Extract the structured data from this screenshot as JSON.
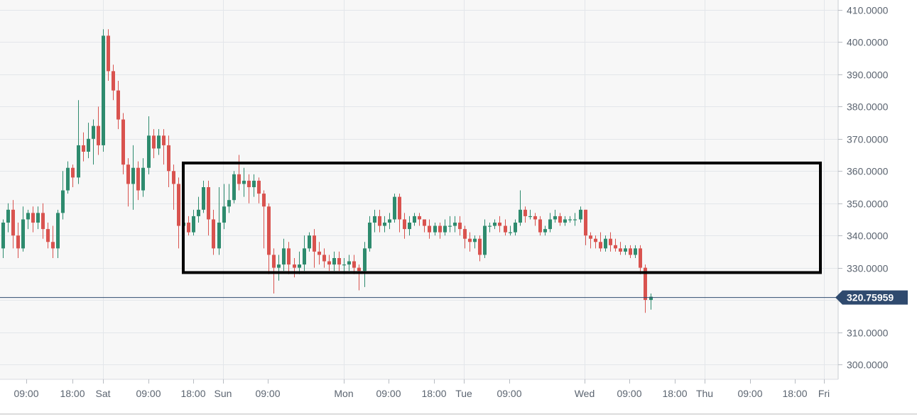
{
  "chart_data": {
    "type": "candlestick",
    "colors": {
      "up": "#2e8b6e",
      "down": "#d9534f",
      "grid": "#e3e6ea",
      "plot_background": "#f7f7f7",
      "price_line": "#2f4a6e",
      "price_tag": "#2f4a6e",
      "highlight_box": "#000000"
    },
    "y_axis": {
      "range": [
        296,
        412
      ],
      "ticks": [
        {
          "value": 410,
          "label": "410.0000"
        },
        {
          "value": 400,
          "label": "400.0000"
        },
        {
          "value": 390,
          "label": "390.0000"
        },
        {
          "value": 380,
          "label": "380.0000"
        },
        {
          "value": 370,
          "label": "370.0000"
        },
        {
          "value": 360,
          "label": "360.0000"
        },
        {
          "value": 350,
          "label": "350.0000"
        },
        {
          "value": 340,
          "label": "340.0000"
        },
        {
          "value": 330,
          "label": "330.0000"
        },
        {
          "value": 320,
          "label": ""
        },
        {
          "value": 310,
          "label": "310.0000"
        },
        {
          "value": 300,
          "label": "300.0000"
        }
      ],
      "position": "right"
    },
    "x_axis": {
      "tick_labels": [
        {
          "label": "09:00",
          "grid": false
        },
        {
          "label": "18:00",
          "grid": false
        },
        {
          "label": "Sat",
          "grid": true
        },
        {
          "label": "09:00",
          "grid": false
        },
        {
          "label": "18:00",
          "grid": false
        },
        {
          "label": "Sun",
          "grid": true
        },
        {
          "label": "09:00",
          "grid": false
        },
        {
          "label": "Mon",
          "grid": true
        },
        {
          "label": "09:00",
          "grid": false
        },
        {
          "label": "18:00",
          "grid": false
        },
        {
          "label": "Tue",
          "grid": true
        },
        {
          "label": "09:00",
          "grid": false
        },
        {
          "label": "Wed",
          "grid": true
        },
        {
          "label": "09:00",
          "grid": false
        },
        {
          "label": "18:00",
          "grid": false
        },
        {
          "label": "Thu",
          "grid": true
        },
        {
          "label": "09:00",
          "grid": false
        },
        {
          "label": "18:00",
          "grid": false
        },
        {
          "label": "Fri",
          "grid": true
        }
      ]
    },
    "current_price": {
      "value": 320.75959,
      "label": "320.75959"
    },
    "highlight_range": {
      "low": 328.5,
      "high": 362.5
    },
    "candles": [
      [
        336,
        344,
        333,
        345
      ],
      [
        344,
        348,
        341,
        350
      ],
      [
        348,
        340,
        336,
        351
      ],
      [
        340,
        336,
        333,
        344
      ],
      [
        336,
        345,
        335,
        349
      ],
      [
        345,
        347,
        342,
        348
      ],
      [
        347,
        344,
        341,
        349
      ],
      [
        344,
        347,
        342,
        349
      ],
      [
        347,
        342,
        339,
        350
      ],
      [
        342,
        338,
        336,
        344
      ],
      [
        338,
        336,
        333,
        343
      ],
      [
        336,
        347,
        333,
        348
      ],
      [
        347,
        354,
        345,
        360
      ],
      [
        354,
        361,
        353,
        363
      ],
      [
        361,
        358,
        355,
        362
      ],
      [
        358,
        368,
        356,
        382
      ],
      [
        368,
        366,
        363,
        372
      ],
      [
        366,
        370,
        364,
        375
      ],
      [
        370,
        374,
        362,
        376
      ],
      [
        374,
        368,
        365,
        380
      ],
      [
        368,
        402,
        366,
        404
      ],
      [
        402,
        391,
        388,
        404
      ],
      [
        391,
        385,
        382,
        393
      ],
      [
        385,
        376,
        373,
        388
      ],
      [
        376,
        362,
        359,
        378
      ],
      [
        362,
        356,
        349,
        364
      ],
      [
        356,
        361,
        348,
        368
      ],
      [
        361,
        354,
        351,
        363
      ],
      [
        354,
        361,
        352,
        364
      ],
      [
        361,
        371,
        359,
        377
      ],
      [
        371,
        367,
        364,
        373
      ],
      [
        367,
        371,
        365,
        373
      ],
      [
        371,
        368,
        362,
        373
      ],
      [
        368,
        360,
        355,
        371
      ],
      [
        360,
        356,
        348,
        362
      ],
      [
        356,
        343,
        336,
        358
      ],
      [
        343,
        344,
        340,
        350
      ],
      [
        344,
        341,
        340,
        346
      ],
      [
        341,
        346,
        340,
        348
      ],
      [
        346,
        348,
        344,
        352
      ],
      [
        348,
        355,
        347,
        357
      ],
      [
        355,
        345,
        340,
        357
      ],
      [
        345,
        336,
        334,
        348
      ],
      [
        336,
        344,
        334,
        355
      ],
      [
        344,
        349,
        342,
        356
      ],
      [
        349,
        351,
        347,
        356
      ],
      [
        351,
        359,
        350,
        360
      ],
      [
        359,
        356,
        354,
        365
      ],
      [
        356,
        357,
        352,
        361
      ],
      [
        357,
        355,
        350,
        359
      ],
      [
        355,
        357,
        352,
        359
      ],
      [
        357,
        353,
        350,
        358
      ],
      [
        353,
        349,
        336,
        354
      ],
      [
        349,
        334,
        328,
        350
      ],
      [
        334,
        330,
        322,
        336
      ],
      [
        330,
        331,
        326,
        334
      ],
      [
        331,
        336,
        329,
        339
      ],
      [
        336,
        331,
        328,
        338
      ],
      [
        331,
        330,
        327,
        333
      ],
      [
        330,
        331,
        328,
        335
      ],
      [
        331,
        336,
        329,
        340
      ],
      [
        336,
        340,
        335,
        341
      ],
      [
        340,
        335,
        330,
        342
      ],
      [
        335,
        334,
        331,
        338
      ],
      [
        334,
        332,
        330,
        336
      ],
      [
        332,
        331,
        329,
        334
      ],
      [
        331,
        333,
        329,
        335
      ],
      [
        333,
        331,
        329,
        335
      ],
      [
        331,
        331,
        328,
        333
      ],
      [
        331,
        332,
        329,
        334
      ],
      [
        332,
        330,
        328,
        334
      ],
      [
        330,
        329,
        323,
        331
      ],
      [
        329,
        336,
        324,
        338
      ],
      [
        336,
        344,
        335,
        346
      ],
      [
        344,
        346,
        341,
        348
      ],
      [
        346,
        343,
        341,
        348
      ],
      [
        343,
        344,
        341,
        346
      ],
      [
        344,
        345,
        342,
        347
      ],
      [
        345,
        352,
        344,
        353
      ],
      [
        352,
        345,
        341,
        353
      ],
      [
        345,
        342,
        339,
        347
      ],
      [
        342,
        344,
        340,
        346
      ],
      [
        344,
        346,
        343,
        347
      ],
      [
        346,
        345,
        343,
        347
      ],
      [
        345,
        343,
        341,
        345
      ],
      [
        343,
        341,
        339,
        345
      ],
      [
        341,
        343,
        340,
        344
      ],
      [
        343,
        341,
        339,
        344
      ],
      [
        341,
        343,
        340,
        345
      ],
      [
        343,
        343,
        341,
        346
      ],
      [
        343,
        344,
        341,
        346
      ],
      [
        344,
        342,
        340,
        346
      ],
      [
        342,
        339,
        336,
        343
      ],
      [
        339,
        338,
        335,
        341
      ],
      [
        338,
        339,
        336,
        340
      ],
      [
        339,
        334,
        332,
        340
      ],
      [
        334,
        343,
        333,
        345
      ],
      [
        343,
        343,
        341,
        344
      ],
      [
        343,
        344,
        342,
        345
      ],
      [
        344,
        343,
        341,
        346
      ],
      [
        343,
        341,
        340,
        345
      ],
      [
        341,
        341,
        340,
        343
      ],
      [
        341,
        344,
        340,
        345
      ],
      [
        344,
        348,
        343,
        354
      ],
      [
        348,
        346,
        344,
        349
      ],
      [
        346,
        346,
        345,
        348
      ],
      [
        346,
        345,
        343,
        347
      ],
      [
        345,
        341,
        340,
        346
      ],
      [
        341,
        342,
        340,
        343
      ],
      [
        342,
        345,
        341,
        347
      ],
      [
        345,
        346,
        344,
        348
      ],
      [
        346,
        344,
        343,
        347
      ],
      [
        344,
        345,
        343,
        346
      ],
      [
        345,
        345,
        344,
        346
      ],
      [
        345,
        345,
        343,
        347
      ],
      [
        345,
        348,
        344,
        349
      ],
      [
        348,
        340,
        337,
        348
      ],
      [
        340,
        339,
        336,
        341
      ],
      [
        339,
        338,
        336,
        340
      ],
      [
        338,
        336,
        335,
        341
      ],
      [
        336,
        339,
        335,
        340
      ],
      [
        339,
        337,
        335,
        341
      ],
      [
        337,
        336,
        335,
        339
      ],
      [
        336,
        335,
        334,
        338
      ],
      [
        335,
        336,
        334,
        337
      ],
      [
        336,
        334,
        333,
        337
      ],
      [
        334,
        336,
        333,
        337
      ],
      [
        336,
        330,
        328,
        337
      ],
      [
        330,
        320,
        316,
        331
      ],
      [
        320,
        321,
        317,
        322
      ]
    ]
  }
}
